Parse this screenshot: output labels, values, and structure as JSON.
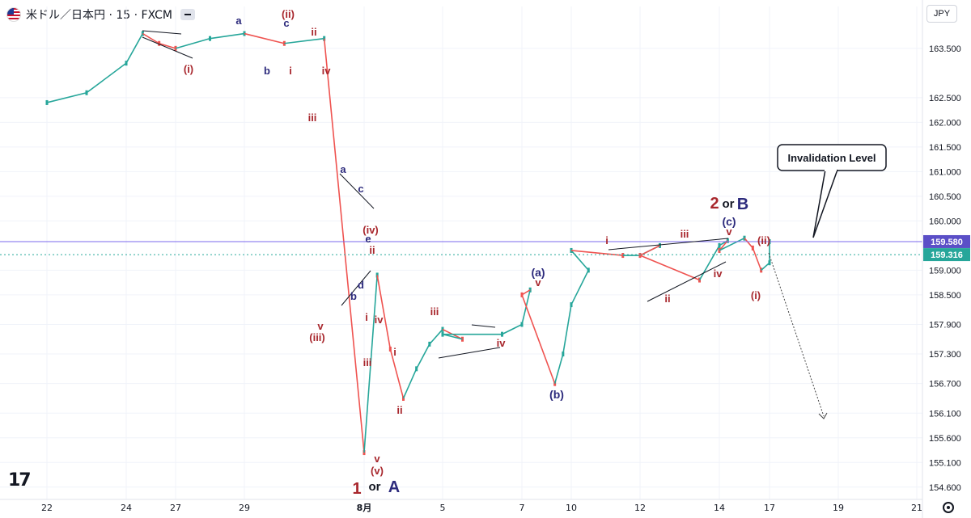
{
  "header": {
    "symbol_title": "米ドル／日本円 · 15 · FXCM",
    "currency_selector": "JPY",
    "flag_icon": "us-jp-flag-icon",
    "collapse_icon": "minus-icon",
    "logo_icon": "tradingview-logo-icon",
    "settings_icon": "gear-icon"
  },
  "chart_data": {
    "type": "candlestick-line",
    "ylim": [
      154.35,
      164.35
    ],
    "y_ticks": [
      "163.500",
      "162.500",
      "162.000",
      "161.500",
      "161.000",
      "160.500",
      "160.000",
      "159.000",
      "158.500",
      "157.900",
      "157.300",
      "156.700",
      "156.100",
      "155.600",
      "155.100",
      "154.600"
    ],
    "x_ticks": [
      "22",
      "24",
      "27",
      "29",
      "8月",
      "5",
      "7",
      "10",
      "12",
      "14",
      "17",
      "19",
      "21"
    ],
    "price_labels": {
      "upper": "159.580",
      "lower": "159.316"
    },
    "price_lines": {
      "invalidation": 159.58,
      "last_price": 159.316
    },
    "callout": "Invalidation Level",
    "series": [
      {
        "x": [
          "22",
          "23",
          "24",
          "25",
          "26",
          "27",
          "28",
          "29",
          "30",
          "31",
          "8月",
          "1.5",
          "2",
          "2.5",
          "3",
          "3.5",
          "4",
          "4.5",
          "5",
          "5.5",
          "6",
          "6.5",
          "7",
          "8",
          "8.5",
          "9",
          "9.5",
          "10",
          "10.5",
          "11",
          "11.5",
          "12",
          "12.5",
          "13",
          "13.5",
          "14",
          "14.5",
          "15",
          "15.5",
          "16",
          "16.5"
        ],
        "values": [
          162.4,
          162.6,
          163.2,
          163.8,
          163.6,
          163.5,
          163.7,
          163.8,
          163.6,
          163.7,
          155.3,
          158.9,
          157.4,
          156.4,
          157.0,
          157.5,
          157.8,
          157.6,
          157.7,
          157.7,
          157.9,
          158.6,
          158.5,
          156.7,
          157.3,
          158.3,
          159.0,
          159.4,
          159.3,
          159.3,
          159.5,
          159.3,
          158.8,
          159.5,
          159.6,
          159.4,
          159.65,
          159.45,
          159.0,
          159.15,
          159.58
        ]
      }
    ],
    "wave_labels": {
      "a1": "a",
      "ii_paren1": "(ii)",
      "c1": "c",
      "ii1": "ii",
      "b1": "b",
      "i1": "i",
      "iv1": "iv",
      "i_paren1": "(i)",
      "iii1": "iii",
      "a2": "a",
      "c2": "c",
      "iv_paren1": "(iv)",
      "e1": "e",
      "ii2": "ii",
      "d1": "d",
      "b2": "b",
      "i2": "i",
      "iv2": "iv",
      "v1": "v",
      "iii_paren1": "(iii)",
      "iii2": "iii",
      "i3": "i",
      "ii3": "ii",
      "v2": "v",
      "v_paren1": "(v)",
      "iii3": "iii",
      "iv3": "iv",
      "a_paren1": "(a)",
      "v3": "v",
      "b_paren1": "(b)",
      "i4": "i",
      "ii4": "ii",
      "iii4": "iii",
      "iv4": "iv",
      "c_paren1": "(c)",
      "v4": "v",
      "ii_paren2": "(ii)",
      "i_paren2": "(i)",
      "w1_num": "1",
      "w1_or": "or",
      "w1_letter": "A",
      "w2_num": "2",
      "w2_or": "or",
      "w2_letter": "B"
    }
  }
}
